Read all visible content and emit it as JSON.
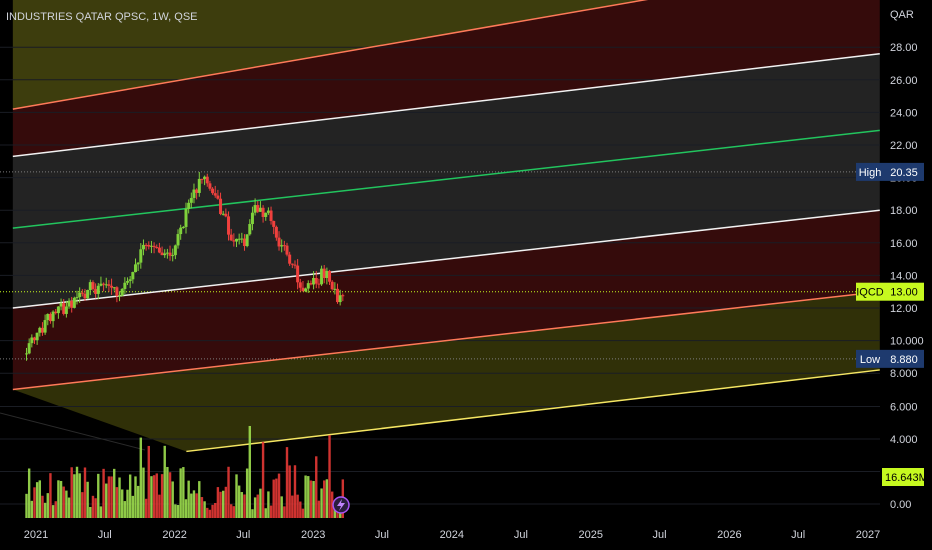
{
  "chart_data": {
    "type": "candlestick",
    "title": "INDUSTRIES QATAR QPSC, 1W, QSE",
    "currency": "QAR",
    "y_ticks": [
      "28.00",
      "26.00",
      "24.00",
      "22.00",
      "20.00",
      "18.00",
      "16.00",
      "14.00",
      "12.00",
      "10.000",
      "8.000",
      "6.000",
      "4.000",
      "2.000",
      "0.00"
    ],
    "y_tick_values": [
      28,
      26,
      24,
      22,
      20,
      18,
      16,
      14,
      12,
      10,
      8,
      6,
      4,
      2,
      0
    ],
    "x_ticks": [
      "2021",
      "Jul",
      "2022",
      "Jul",
      "2023",
      "Jul",
      "2024",
      "Jul",
      "2025",
      "Jul",
      "2026",
      "Jul",
      "2027"
    ],
    "x_tick_dates": [
      "2021-01-01",
      "2021-07-01",
      "2022-01-01",
      "2022-07-01",
      "2023-01-01",
      "2023-07-01",
      "2024-01-01",
      "2024-07-01",
      "2025-01-01",
      "2025-07-01",
      "2026-01-01",
      "2026-07-01",
      "2027-01-01"
    ],
    "markers": [
      {
        "label": "High",
        "value": "20.35",
        "color": "#1e3a6e"
      },
      {
        "label": "IQCD",
        "value": "13.00",
        "color": "#c6f91f"
      },
      {
        "label": "Low",
        "value": "8.880",
        "color": "#1e3a6e"
      }
    ],
    "volume_label": "16.643M",
    "channel_lines": [
      {
        "color": "#ff7a59",
        "start": [
          "2020-11-01",
          24.2
        ],
        "end": [
          "2027-02-01",
          33.4
        ]
      },
      {
        "color": "#f2f2f2",
        "start": [
          "2020-11-01",
          21.3
        ],
        "end": [
          "2027-02-01",
          27.6
        ]
      },
      {
        "color": "#22c55e",
        "start": [
          "2020-11-01",
          16.9
        ],
        "end": [
          "2027-02-01",
          22.9
        ]
      },
      {
        "color": "#f2f2f2",
        "start": [
          "2020-11-01",
          12.0
        ],
        "end": [
          "2027-02-01",
          18.0
        ]
      },
      {
        "color": "#ff7a59",
        "start": [
          "2020-11-01",
          7.0
        ],
        "end": [
          "2027-02-01",
          13.0
        ]
      },
      {
        "color": "#f5e663",
        "start": [
          "2022-02-01",
          3.2
        ],
        "end": [
          "2027-02-01",
          8.2
        ]
      }
    ],
    "weekly_close": [
      {
        "date": "2020-12-07",
        "close": 9.2
      },
      {
        "date": "2021-01-04",
        "close": 10.4
      },
      {
        "date": "2021-02-01",
        "close": 11.2
      },
      {
        "date": "2021-03-01",
        "close": 11.8
      },
      {
        "date": "2021-04-05",
        "close": 12.1
      },
      {
        "date": "2021-05-03",
        "close": 12.9
      },
      {
        "date": "2021-06-07",
        "close": 13.3
      },
      {
        "date": "2021-07-05",
        "close": 13.1
      },
      {
        "date": "2021-08-02",
        "close": 13.0
      },
      {
        "date": "2021-09-06",
        "close": 13.6
      },
      {
        "date": "2021-10-04",
        "close": 15.3
      },
      {
        "date": "2021-11-01",
        "close": 15.9
      },
      {
        "date": "2021-12-06",
        "close": 15.0
      },
      {
        "date": "2022-01-03",
        "close": 15.6
      },
      {
        "date": "2022-02-07",
        "close": 18.6
      },
      {
        "date": "2022-03-07",
        "close": 19.8
      },
      {
        "date": "2022-04-04",
        "close": 19.6
      },
      {
        "date": "2022-05-02",
        "close": 18.0
      },
      {
        "date": "2022-06-06",
        "close": 16.2
      },
      {
        "date": "2022-07-04",
        "close": 15.7
      },
      {
        "date": "2022-08-01",
        "close": 18.4
      },
      {
        "date": "2022-09-05",
        "close": 17.6
      },
      {
        "date": "2022-10-03",
        "close": 16.0
      },
      {
        "date": "2022-11-07",
        "close": 14.6
      },
      {
        "date": "2022-12-05",
        "close": 12.9
      },
      {
        "date": "2023-01-02",
        "close": 13.6
      },
      {
        "date": "2023-02-06",
        "close": 14.3
      },
      {
        "date": "2023-03-06",
        "close": 12.6
      },
      {
        "date": "2023-03-20",
        "close": 13.0
      }
    ]
  }
}
